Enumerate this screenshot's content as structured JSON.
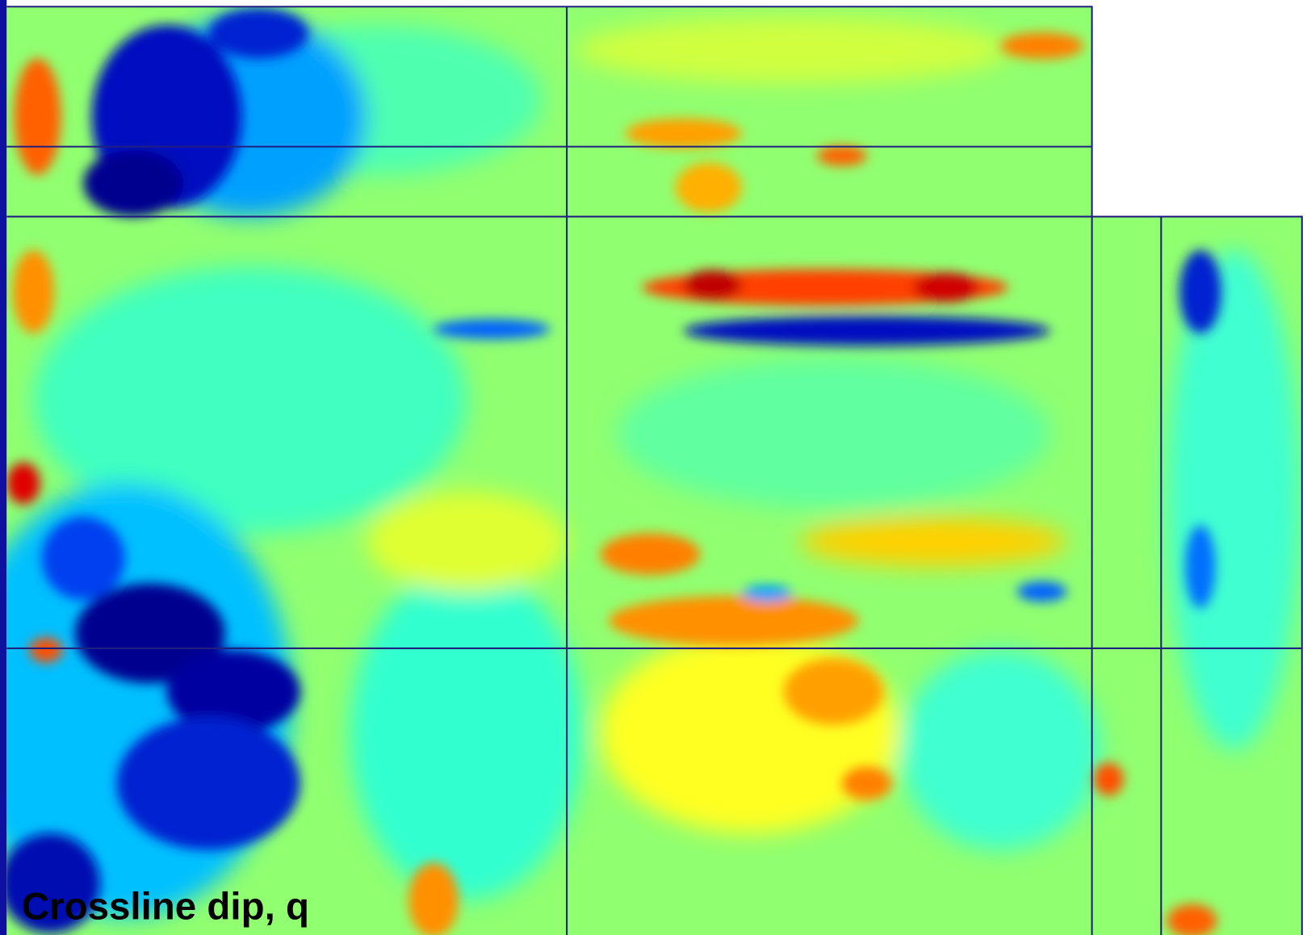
{
  "caption": "Crossline dip, q"
}
